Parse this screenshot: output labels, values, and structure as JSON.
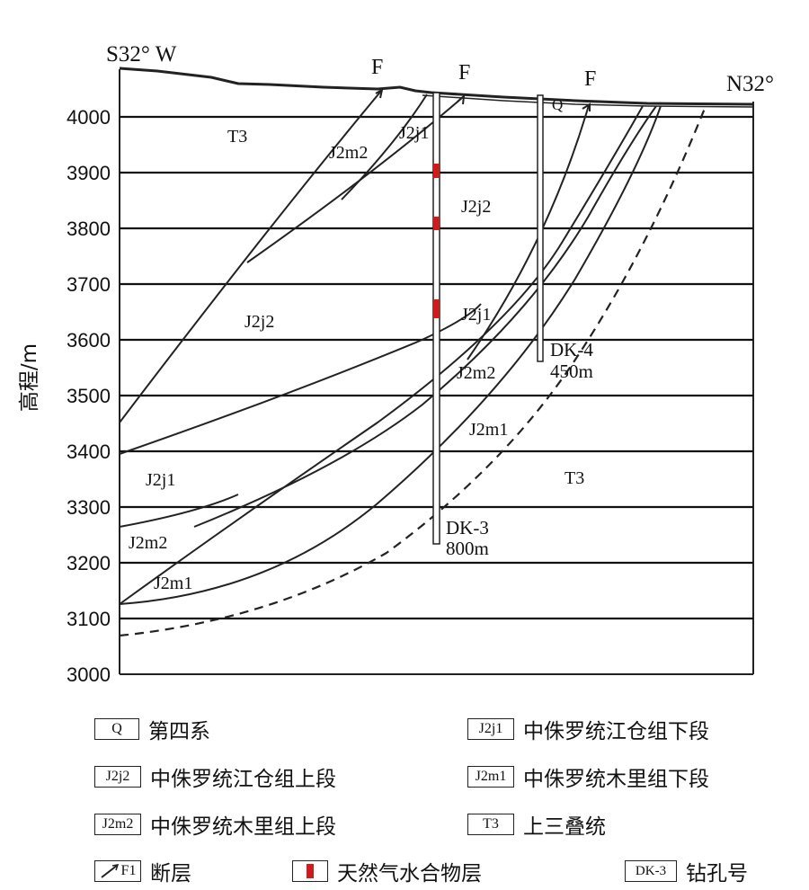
{
  "section": {
    "left_direction": "S32° W",
    "right_direction": "N32°",
    "fault_label": "F",
    "y_axis_label": "高程/m",
    "y_ticks": [
      "4000",
      "3900",
      "3800",
      "3700",
      "3600",
      "3500",
      "3400",
      "3300",
      "3200",
      "3100",
      "3000"
    ],
    "unit_labels": {
      "t3_top": "T3",
      "j2m2_top": "J2m2",
      "j2j1_top": "J2j1",
      "q": "Q",
      "j2j2_center": "J2j2",
      "j2j2_left": "J2j2",
      "j2j1_mid": "J2j1",
      "j2m2_mid": "J2m2",
      "j2m1_mid": "J2m1",
      "t3_right": "T3",
      "j2j1_left": "J2j1",
      "j2m2_left": "J2m2",
      "j2m1_left": "J2m1"
    },
    "boreholes": [
      {
        "id": "DK-4",
        "depth": "450m"
      },
      {
        "id": "DK-3",
        "depth": "800m"
      }
    ]
  },
  "legend": {
    "items": [
      {
        "symbol": "Q",
        "text": "第四系"
      },
      {
        "symbol": "J2j1",
        "text": "中侏罗统江仓组下段"
      },
      {
        "symbol": "J2j2",
        "text": "中侏罗统江仓组上段"
      },
      {
        "symbol": "J2m1",
        "text": "中侏罗统木里组下段"
      },
      {
        "symbol": "J2m2",
        "text": "中侏罗统木里组上段"
      },
      {
        "symbol": "T3",
        "text": "上三叠统"
      },
      {
        "symbol": "F1",
        "text": "断层"
      },
      {
        "symbol": "",
        "text": "天然气水合物层"
      },
      {
        "symbol": "DK-3",
        "text": "钻孔号"
      }
    ]
  },
  "colors": {
    "hydrate_layer": "#d11a1a",
    "line": "#222222"
  }
}
